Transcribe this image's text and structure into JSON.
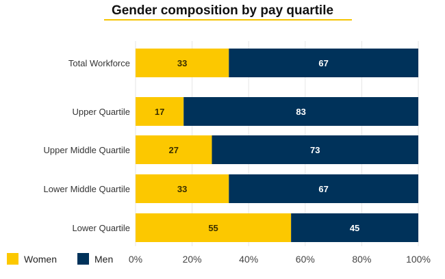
{
  "chart_data": {
    "type": "bar",
    "orientation": "horizontal",
    "stacked": true,
    "title": "Gender composition by pay quartile",
    "categories": [
      "Total Workforce",
      "Upper Quartile",
      "Upper Middle Quartile",
      "Lower Middle Quartile",
      "Lower Quartile"
    ],
    "series": [
      {
        "name": "Women",
        "color": "#fcc800",
        "values": [
          33,
          17,
          27,
          33,
          55
        ]
      },
      {
        "name": "Men",
        "color": "#00325a",
        "values": [
          67,
          83,
          73,
          67,
          45
        ]
      }
    ],
    "x_ticks": [
      "0%",
      "20%",
      "40%",
      "60%",
      "80%",
      "100%"
    ],
    "xlim": [
      0,
      100
    ],
    "grid": "vertical",
    "legend": "bottom-left"
  }
}
